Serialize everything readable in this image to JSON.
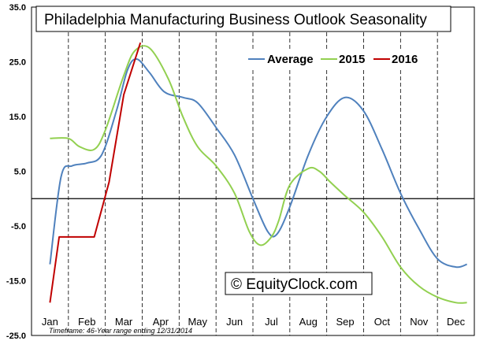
{
  "chart_data": {
    "type": "line",
    "title": "Philadelphia Manufacturing Business Outlook Seasonality",
    "categories": [
      "Jan",
      "Feb",
      "Mar",
      "Apr",
      "May",
      "Jun",
      "Jul",
      "Aug",
      "Sep",
      "Oct",
      "Nov",
      "Dec"
    ],
    "ylim": [
      -25.0,
      35.0
    ],
    "yticks": [
      35.0,
      25.0,
      15.0,
      5.0,
      -5.0,
      -15.0,
      -25.0
    ],
    "ytick_labels": [
      "35.0",
      "25.0",
      "15.0",
      "5.0",
      "-5.0",
      "-15.0",
      "-25.0"
    ],
    "grid": "vertical-dashed-between-months",
    "zero_line": true,
    "legend_position": "top-right",
    "series": [
      {
        "name": "Average",
        "color": "#4f81bd",
        "x": [
          0.0,
          0.3,
          0.6,
          1.0,
          1.4,
          1.8,
          2.1,
          2.35,
          2.7,
          3.1,
          3.6,
          4.0,
          4.5,
          5.0,
          5.5,
          5.9,
          6.15,
          6.5,
          7.0,
          7.5,
          8.0,
          8.5,
          9.0,
          9.5,
          10.0,
          10.5,
          11.0,
          11.3
        ],
        "values": [
          -12.0,
          4.0,
          6.0,
          6.5,
          8.0,
          16.0,
          23.5,
          25.5,
          23.0,
          19.5,
          18.5,
          17.5,
          13.0,
          8.0,
          0.0,
          -6.0,
          -6.5,
          -1.5,
          8.0,
          15.0,
          18.5,
          16.0,
          9.0,
          1.0,
          -5.5,
          -11.0,
          -12.5,
          -12.0
        ]
      },
      {
        "name": "2015",
        "color": "#92d050",
        "x": [
          0.0,
          0.5,
          0.8,
          1.2,
          1.5,
          2.0,
          2.3,
          2.7,
          3.2,
          3.6,
          4.0,
          4.5,
          5.0,
          5.4,
          5.7,
          6.0,
          6.2,
          6.5,
          7.0,
          7.3,
          7.6,
          8.0,
          8.5,
          9.0,
          9.5,
          10.0,
          10.5,
          11.0,
          11.3
        ],
        "values": [
          11.0,
          11.0,
          9.5,
          9.0,
          12.5,
          22.5,
          27.0,
          27.5,
          22.0,
          15.0,
          9.5,
          6.0,
          1.0,
          -6.0,
          -8.5,
          -7.0,
          -4.0,
          2.5,
          5.5,
          5.0,
          3.0,
          0.5,
          -2.5,
          -7.0,
          -12.5,
          -16.0,
          -18.0,
          -19.0,
          -19.0
        ]
      },
      {
        "name": "2016",
        "color": "#c00000",
        "x": [
          0.0,
          0.25,
          1.2,
          1.6,
          2.0,
          2.45
        ],
        "values": [
          -19.0,
          -7.0,
          -7.0,
          3.0,
          19.0,
          28.5
        ]
      }
    ],
    "annotations": [
      {
        "text": "© EquityClock.com",
        "position": "bottom-center"
      },
      {
        "text": "Timeframe: 46-Year range ending 12/31/2014",
        "position": "bottom-left"
      }
    ]
  }
}
